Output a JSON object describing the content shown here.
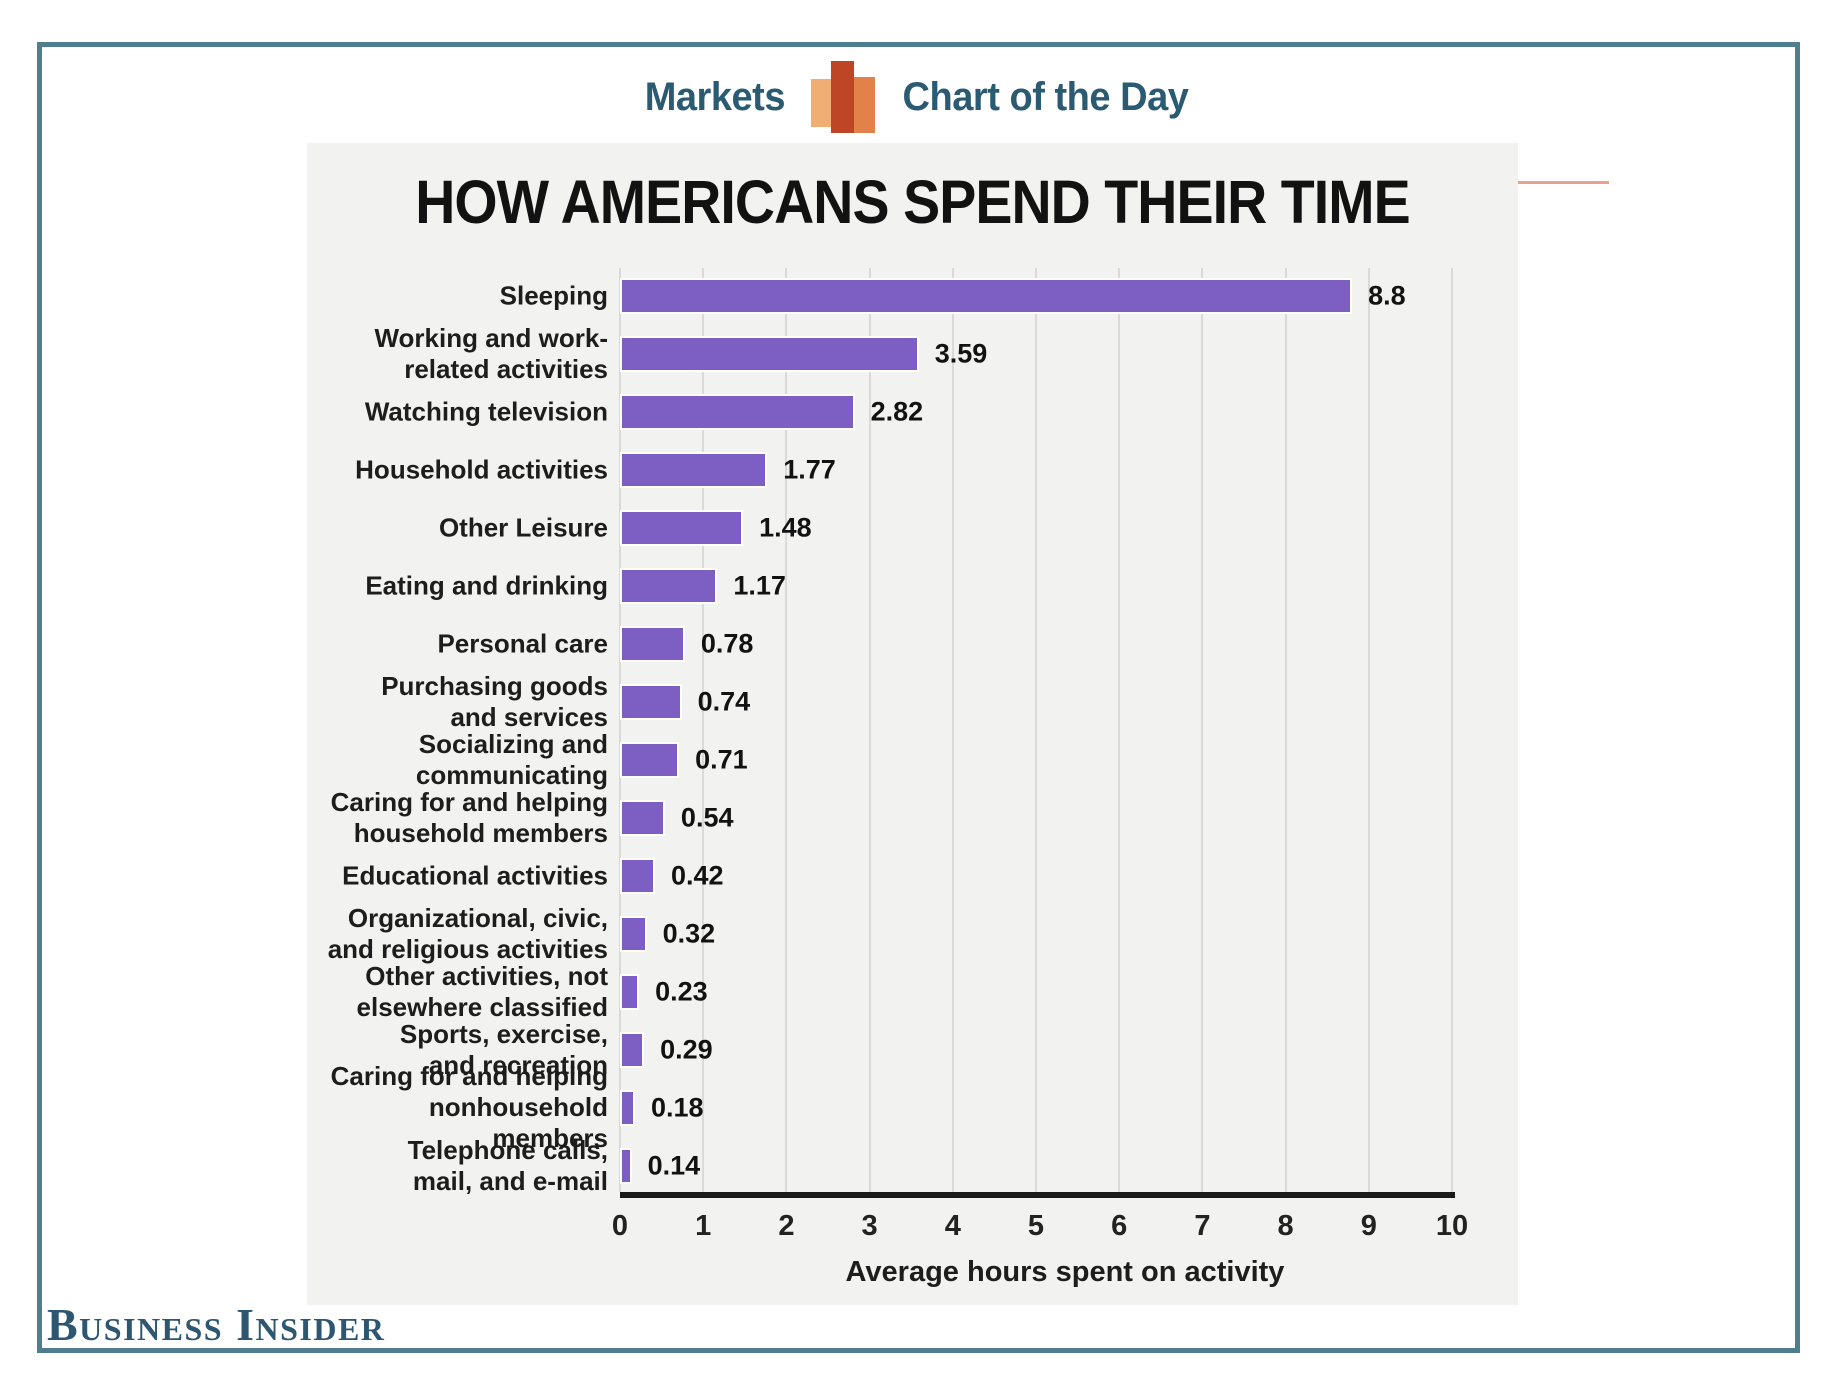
{
  "page": {
    "background": "#ffffff",
    "frame_border_color": "#4f7e8e"
  },
  "header": {
    "markets_label": "Markets",
    "chart_of_day_label": "Chart of the Day",
    "text_color": "#2a5b73",
    "divider_color": "#e9a18c",
    "icon": "bar-chart-icon",
    "icon_colors": {
      "left": "#eda05c",
      "middle": "#bf4527",
      "right": "#e0763a"
    }
  },
  "brand": {
    "name": "Business Insider",
    "color": "#2d5670"
  },
  "chart_data": {
    "type": "bar",
    "orientation": "horizontal",
    "title": "HOW AMERICANS SPEND THEIR TIME",
    "xlabel": "Average hours spent on activity",
    "xlim": [
      0,
      10
    ],
    "xticks": [
      0,
      1,
      2,
      3,
      4,
      5,
      6,
      7,
      8,
      9,
      10
    ],
    "grid": "vertical gridlines at each integer, light gray",
    "legend": "none",
    "bar_color": "#7d5ec2",
    "panel_background": "#f2f2f1",
    "axis_line_color": "#1a1a1a",
    "categories": [
      "Sleeping",
      "Working and work-related activities",
      "Watching television",
      "Household activities",
      "Other Leisure",
      "Eating and drinking",
      "Personal care",
      "Purchasing goods and services",
      "Socializing and communicating",
      "Caring for and helping household members",
      "Educational activities",
      "Organizational, civic, and religious activities",
      "Other activities, not elsewhere classified",
      "Sports, exercise, and recreation",
      "Caring for and helping nonhousehold members",
      "Telephone calls, mail, and e-mail"
    ],
    "label_lines": [
      [
        "Sleeping"
      ],
      [
        "Working and work-",
        "related activities"
      ],
      [
        "Watching television"
      ],
      [
        "Household activities"
      ],
      [
        "Other Leisure"
      ],
      [
        "Eating and drinking"
      ],
      [
        "Personal care"
      ],
      [
        "Purchasing goods",
        "and services"
      ],
      [
        "Socializing and",
        "communicating"
      ],
      [
        "Caring for and helping",
        "household members"
      ],
      [
        "Educational activities"
      ],
      [
        "Organizational, civic,",
        "and religious activities"
      ],
      [
        "Other activities, not",
        "elsewhere classified"
      ],
      [
        "Sports, exercise,",
        "and recreation"
      ],
      [
        "Caring for and helping",
        "nonhousehold members"
      ],
      [
        "Telephone calls,",
        "mail, and e-mail"
      ]
    ],
    "values": [
      8.8,
      3.59,
      2.82,
      1.77,
      1.48,
      1.17,
      0.78,
      0.74,
      0.71,
      0.54,
      0.42,
      0.32,
      0.23,
      0.29,
      0.18,
      0.14
    ]
  }
}
